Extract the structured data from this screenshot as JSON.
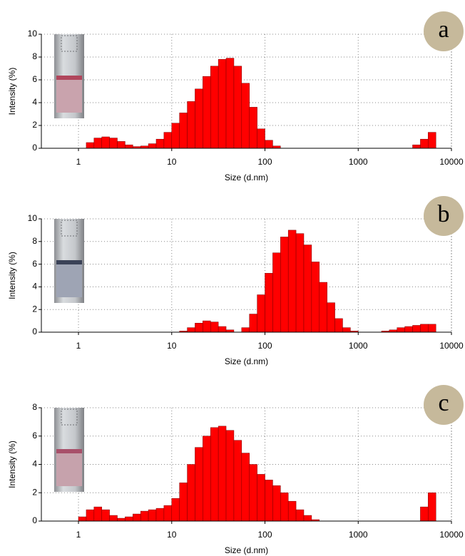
{
  "chart_data": [
    {
      "type": "histogram",
      "panel_label": "a",
      "xlabel": "Size (d.nm)",
      "ylabel": "Intensity (%)",
      "xscale": "log",
      "xlim": [
        0.4,
        10000
      ],
      "xticks": [
        1,
        10,
        100,
        1000,
        10000
      ],
      "ylim": [
        0,
        10
      ],
      "yticks": [
        0,
        2,
        4,
        6,
        8,
        10
      ],
      "grid": true,
      "color": "#ff0000",
      "bins": [
        1,
        1.212,
        1.468,
        1.778,
        2.154,
        2.61,
        3.162,
        3.831,
        4.642,
        5.623,
        6.813,
        8.254,
        10,
        12.12,
        14.68,
        17.78,
        21.54,
        26.1,
        31.62,
        38.31,
        46.42,
        56.23,
        68.13,
        82.54,
        100,
        121.2,
        146.8,
        177.8,
        215.4,
        261,
        316.2,
        383.1,
        464.2,
        562.3,
        681.3,
        825.4,
        1000,
        1212,
        1468,
        1778,
        2154,
        2610,
        3162,
        3831,
        4642,
        5623,
        6813
      ],
      "values": [
        0,
        0.5,
        0.9,
        1.0,
        0.9,
        0.6,
        0.3,
        0.15,
        0.2,
        0.4,
        0.8,
        1.4,
        2.2,
        3.1,
        4.1,
        5.2,
        6.3,
        7.2,
        7.8,
        7.9,
        7.2,
        5.7,
        3.6,
        1.7,
        0.7,
        0.2,
        0,
        0,
        0,
        0,
        0,
        0,
        0,
        0,
        0,
        0,
        0,
        0,
        0,
        0,
        0,
        0,
        0,
        0.3,
        0.8,
        1.4
      ]
    },
    {
      "type": "histogram",
      "panel_label": "b",
      "xlabel": "Size (d.nm)",
      "ylabel": "Intensity (%)",
      "xscale": "log",
      "xlim": [
        0.4,
        10000
      ],
      "xticks": [
        1,
        10,
        100,
        1000,
        10000
      ],
      "ylim": [
        0,
        10
      ],
      "yticks": [
        0,
        2,
        4,
        6,
        8,
        10
      ],
      "grid": true,
      "color": "#ff0000",
      "bins": [
        1,
        1.212,
        1.468,
        1.778,
        2.154,
        2.61,
        3.162,
        3.831,
        4.642,
        5.623,
        6.813,
        8.254,
        10,
        12.12,
        14.68,
        17.78,
        21.54,
        26.1,
        31.62,
        38.31,
        46.42,
        56.23,
        68.13,
        82.54,
        100,
        121.2,
        146.8,
        177.8,
        215.4,
        261,
        316.2,
        383.1,
        464.2,
        562.3,
        681.3,
        825.4,
        1000,
        1212,
        1468,
        1778,
        2154,
        2610,
        3162,
        3831,
        4642,
        5623,
        6813
      ],
      "values": [
        0,
        0,
        0,
        0,
        0,
        0,
        0,
        0,
        0,
        0,
        0,
        0,
        0,
        0.1,
        0.4,
        0.8,
        1.0,
        0.9,
        0.5,
        0.2,
        0,
        0.4,
        1.6,
        3.3,
        5.2,
        7.0,
        8.4,
        9.0,
        8.7,
        7.7,
        6.2,
        4.4,
        2.6,
        1.2,
        0.4,
        0.1,
        0,
        0,
        0,
        0.1,
        0.2,
        0.4,
        0.5,
        0.6,
        0.7,
        0.7
      ]
    },
    {
      "type": "histogram",
      "panel_label": "c",
      "xlabel": "Size (d.nm)",
      "ylabel": "Intensity (%)",
      "xscale": "log",
      "xlim": [
        0.4,
        10000
      ],
      "xticks": [
        1,
        10,
        100,
        1000,
        10000
      ],
      "ylim": [
        0,
        8
      ],
      "yticks": [
        0,
        2,
        4,
        6,
        8
      ],
      "grid": true,
      "color": "#ff0000",
      "bins": [
        1,
        1.212,
        1.468,
        1.778,
        2.154,
        2.61,
        3.162,
        3.831,
        4.642,
        5.623,
        6.813,
        8.254,
        10,
        12.12,
        14.68,
        17.78,
        21.54,
        26.1,
        31.62,
        38.31,
        46.42,
        56.23,
        68.13,
        82.54,
        100,
        121.2,
        146.8,
        177.8,
        215.4,
        261,
        316.2,
        383.1,
        464.2,
        562.3,
        681.3,
        825.4,
        1000,
        1212,
        1468,
        1778,
        2154,
        2610,
        3162,
        3831,
        4642,
        5623,
        6813
      ],
      "values": [
        0.3,
        0.8,
        1.0,
        0.8,
        0.4,
        0.2,
        0.3,
        0.5,
        0.7,
        0.8,
        0.9,
        1.1,
        1.6,
        2.7,
        4.0,
        5.2,
        6.0,
        6.6,
        6.7,
        6.4,
        5.7,
        4.8,
        4.0,
        3.3,
        2.9,
        2.5,
        2.0,
        1.4,
        0.8,
        0.4,
        0.1,
        0,
        0,
        0,
        0,
        0,
        0,
        0,
        0,
        0,
        0,
        0,
        0,
        0,
        1.0,
        2.0
      ]
    }
  ]
}
